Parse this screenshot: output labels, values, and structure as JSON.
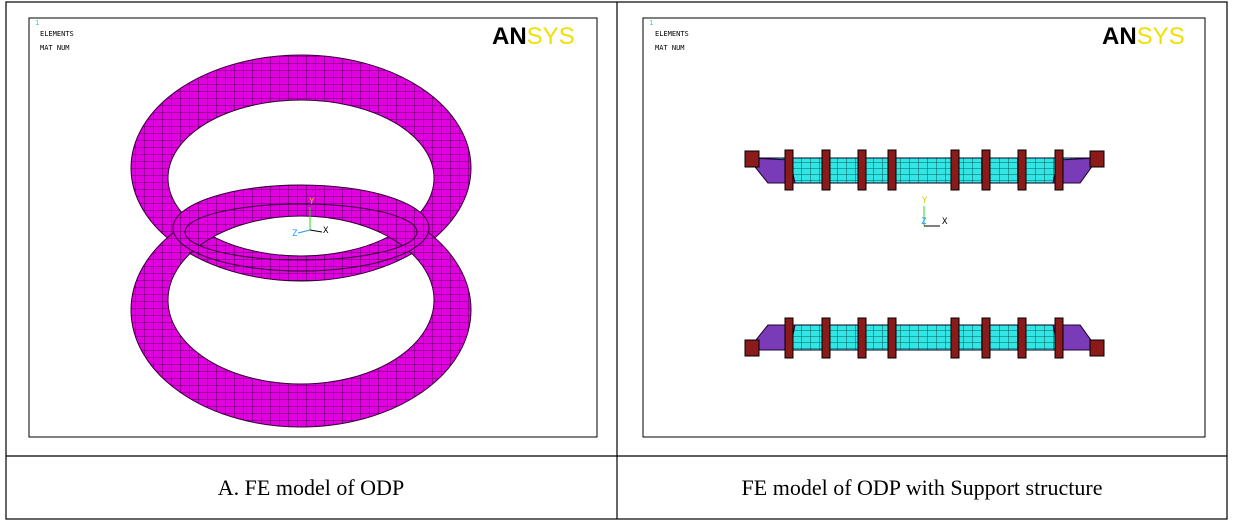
{
  "panels": [
    {
      "number": "1",
      "lines": [
        "ELEMENTS",
        "MAT  NUM"
      ],
      "logo_parts": [
        "AN",
        "SYS"
      ],
      "axes": [
        "Y",
        "Z",
        "X"
      ],
      "caption": "A. FE model of ODP"
    },
    {
      "number": "1",
      "lines": [
        "ELEMENTS",
        "MAT  NUM"
      ],
      "logo_parts": [
        "AN",
        "SYS"
      ],
      "axes": [
        "Y",
        "Z",
        "X"
      ],
      "caption": "FE model of ODP with Support structure"
    }
  ]
}
